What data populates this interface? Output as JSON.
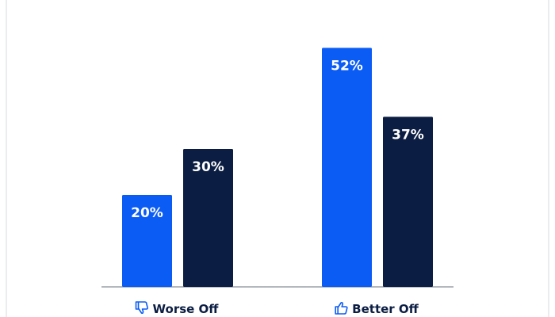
{
  "chart_data": {
    "type": "bar",
    "categories": [
      "Worse Off",
      "Better Off"
    ],
    "series": [
      {
        "color": "#0b5cf5",
        "values": [
          20,
          52
        ],
        "value_labels": [
          "20%",
          "52%"
        ]
      },
      {
        "color": "#0b1d42",
        "values": [
          30,
          37
        ],
        "value_labels": [
          "30%",
          "37%"
        ]
      }
    ],
    "ylim": [
      0,
      60
    ]
  }
}
